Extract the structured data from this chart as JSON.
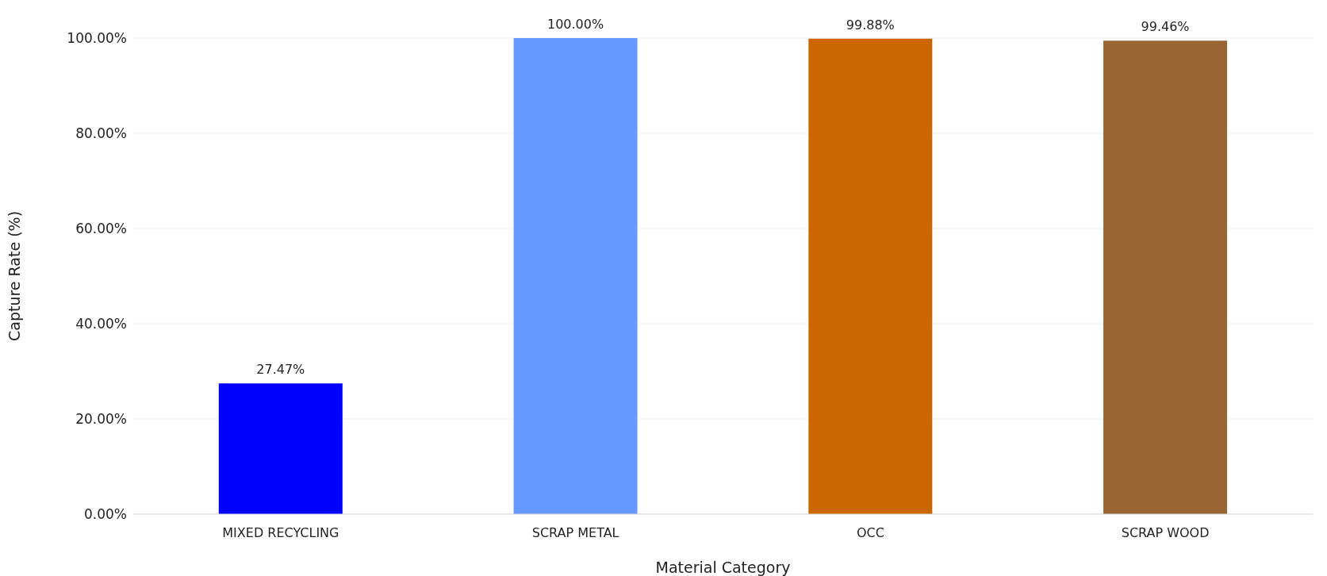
{
  "chart_data": {
    "type": "bar",
    "xlabel": "Material Category",
    "ylabel": "Capture Rate (%)",
    "categories": [
      "MIXED RECYCLING",
      "SCRAP METAL",
      "OCC",
      "SCRAP WOOD"
    ],
    "values": [
      27.47,
      100,
      99.88,
      99.46
    ],
    "colors": [
      "#0000ff",
      "#6699ff",
      "#cc6600",
      "#996633"
    ],
    "value_labels": [
      "27.47%",
      "100.00%",
      "99.88%",
      "99.46%"
    ],
    "ylim": [
      0,
      100
    ],
    "yticks": [
      {
        "value": 0,
        "label": "0.00%"
      },
      {
        "value": 20,
        "label": "20.00%"
      },
      {
        "value": 40,
        "label": "40.00%"
      },
      {
        "value": 60,
        "label": "60.00%"
      },
      {
        "value": 80,
        "label": "80.00%"
      },
      {
        "value": 100,
        "label": "100.00%"
      }
    ],
    "grid": "y"
  }
}
